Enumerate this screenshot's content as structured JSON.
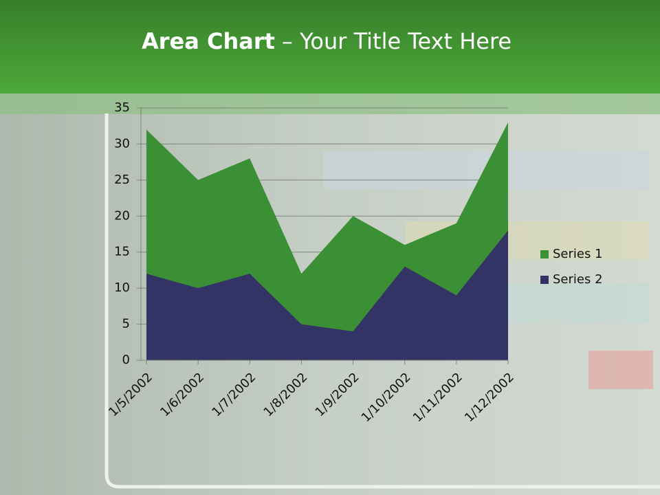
{
  "chart_data": {
    "type": "area",
    "title": "Area Chart",
    "subtitle": "– Your Title Text Here",
    "categories": [
      "1/5/2002",
      "1/6/2002",
      "1/7/2002",
      "1/8/2002",
      "1/9/2002",
      "1/10/2002",
      "1/11/2002",
      "1/12/2002"
    ],
    "series": [
      {
        "name": "Series 1",
        "color": "#3b8f34",
        "values": [
          32,
          25,
          28,
          12,
          20,
          16,
          19,
          33
        ]
      },
      {
        "name": "Series 2",
        "color": "#333366",
        "values": [
          12,
          10,
          12,
          5,
          4,
          13,
          9,
          18
        ]
      }
    ],
    "ylim": [
      0,
      35
    ],
    "yticks": [
      0,
      5,
      10,
      15,
      20,
      25,
      30,
      35
    ],
    "grid": true,
    "legend": "right"
  }
}
